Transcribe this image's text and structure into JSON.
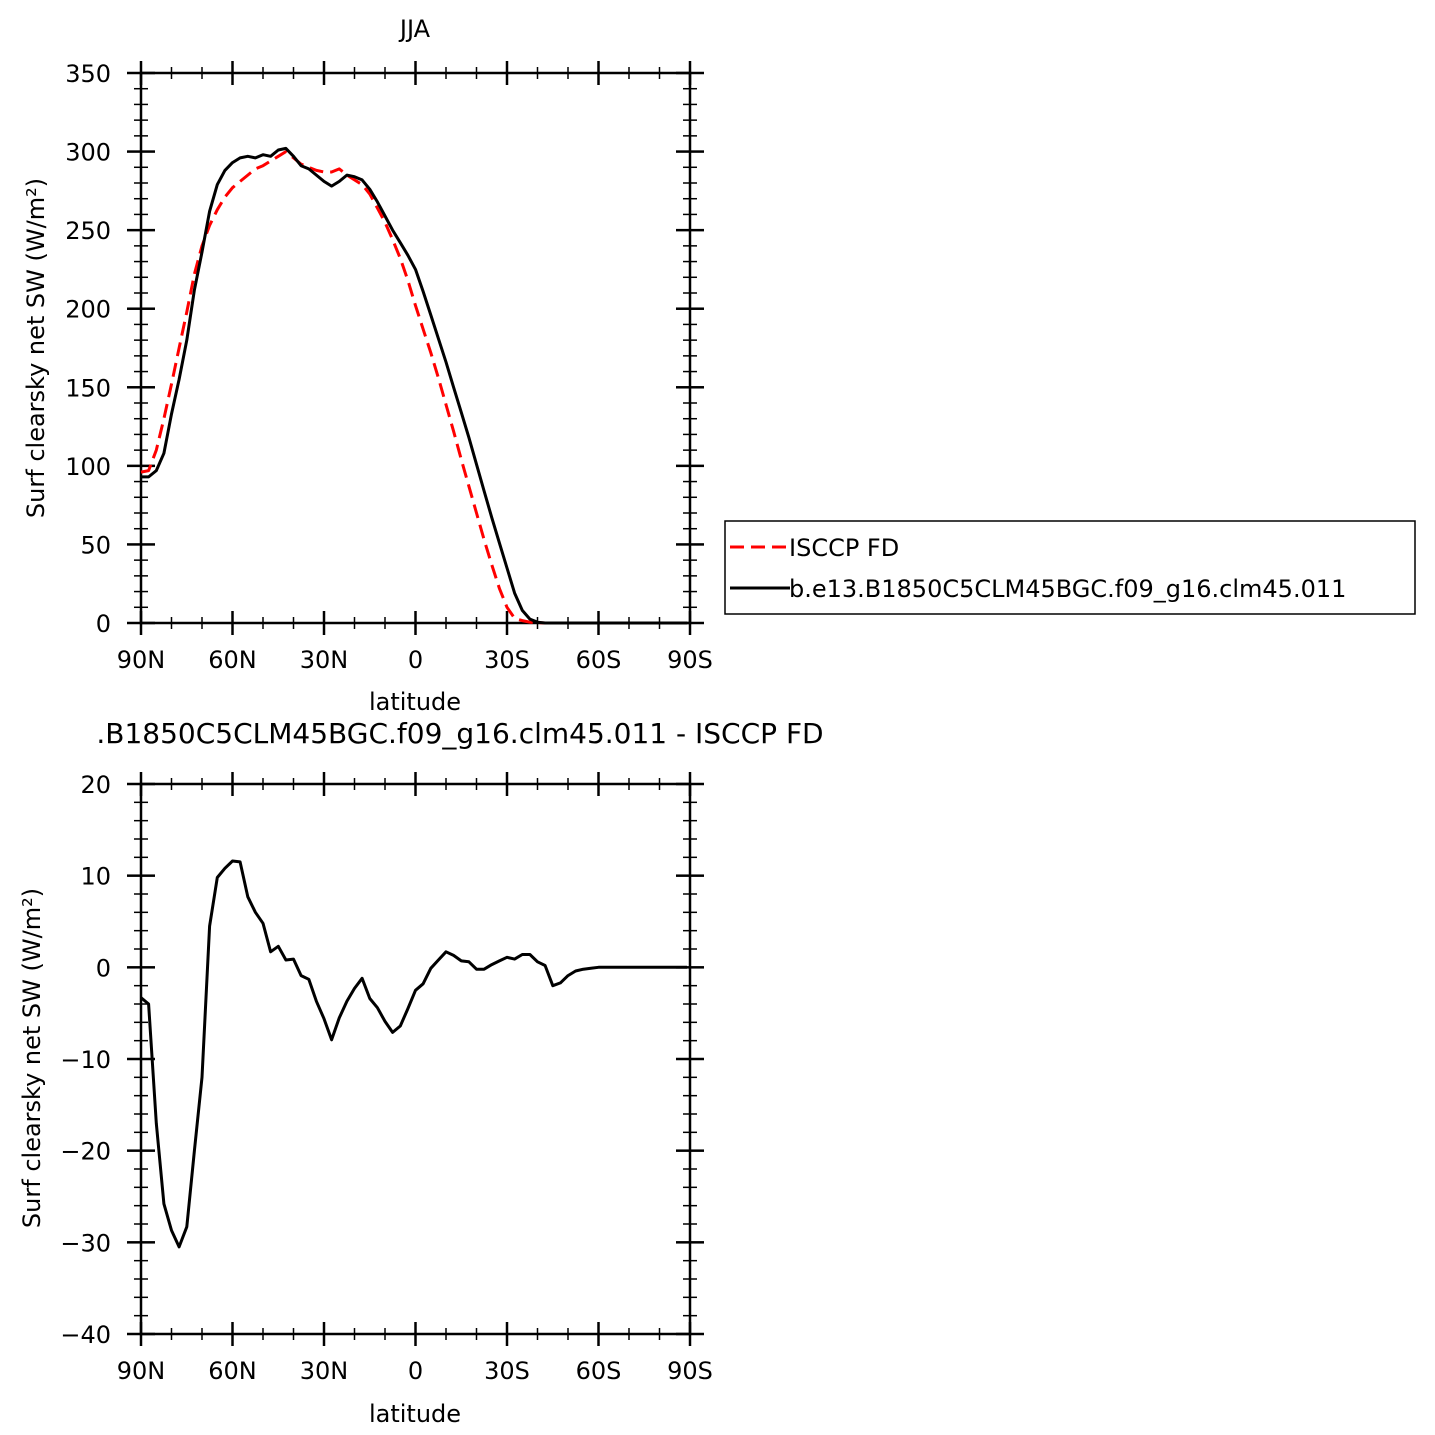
{
  "colors": {
    "obs": "#ff0000",
    "model": "#000000",
    "axis": "#000000"
  },
  "chart_data": [
    {
      "type": "line",
      "title": "JJA",
      "xlabel": "latitude",
      "ylabel": "Surf clearsky net SW (W/m²)",
      "xlim": [
        90,
        -90
      ],
      "ylim": [
        0,
        350
      ],
      "xticks": [
        90,
        60,
        30,
        0,
        -30,
        -60,
        -90
      ],
      "xtick_labels": [
        "90N",
        "60N",
        "30N",
        "0",
        "30S",
        "60S",
        "90S"
      ],
      "yticks": [
        0,
        50,
        100,
        150,
        200,
        250,
        300,
        350
      ],
      "ytick_labels": [
        "0",
        "50",
        "100",
        "150",
        "200",
        "250",
        "300",
        "350"
      ],
      "legend": {
        "placement": "right",
        "entries": [
          "ISCCP FD",
          "b.e13.B1850C5CLM45BGC.f09_g16.clm45.011"
        ]
      },
      "series": [
        {
          "name": "ISCCP FD",
          "style": "dashed",
          "color": "#ff0000",
          "x": [
            90,
            87.5,
            85,
            82.5,
            80,
            77.5,
            75,
            72.5,
            70,
            67.5,
            65,
            62.5,
            60,
            57.5,
            55,
            52.5,
            50,
            47.5,
            45,
            42.5,
            40,
            37.5,
            35,
            32.5,
            30,
            27.5,
            25,
            22.5,
            20,
            17.5,
            15,
            12.5,
            10,
            7.5,
            5,
            2.5,
            0,
            -2.5,
            -5,
            -7.5,
            -10,
            -12.5,
            -15,
            -17.5,
            -20,
            -22.5,
            -25,
            -27.5,
            -30,
            -32.5,
            -35,
            -37.5,
            -40,
            -42.5,
            -45,
            -47.5,
            -50,
            -52.5,
            -55,
            -57.5,
            -60,
            -62.5,
            -65,
            -67.5,
            -70,
            -72.5,
            -75,
            -77.5,
            -80,
            -82.5,
            -85,
            -87.5,
            -89
          ],
          "values": [
            96,
            97,
            110,
            130,
            152,
            175,
            198,
            222,
            240,
            253,
            263,
            271,
            277,
            281,
            285,
            289,
            291,
            294,
            297,
            300,
            296,
            292,
            290,
            288,
            287,
            287,
            289,
            285,
            282,
            279,
            273,
            264,
            255,
            244,
            232,
            218,
            202,
            187,
            172,
            156,
            139,
            122,
            104,
            87,
            70,
            53,
            37,
            22,
            10,
            3,
            1.5,
            0.5,
            0.2,
            0,
            0,
            0,
            0,
            0,
            0,
            0,
            0,
            0,
            0,
            0,
            0,
            0,
            0,
            0,
            0,
            0,
            0,
            0,
            0
          ]
        },
        {
          "name": "b.e13.B1850C5CLM45BGC.f09_g16.clm45.011",
          "style": "solid",
          "color": "#000000",
          "x": [
            90,
            87.5,
            85,
            82.5,
            80,
            77.5,
            75,
            72.5,
            70,
            67.5,
            65,
            62.5,
            60,
            57.5,
            55,
            52.5,
            50,
            47.5,
            45,
            42.5,
            40,
            37.5,
            35,
            32.5,
            30,
            27.5,
            25,
            22.5,
            20,
            17.5,
            15,
            12.5,
            10,
            7.5,
            5,
            2.5,
            0,
            -2.5,
            -5,
            -7.5,
            -10,
            -12.5,
            -15,
            -17.5,
            -20,
            -22.5,
            -25,
            -27.5,
            -30,
            -32.5,
            -35,
            -37.5,
            -40,
            -42.5,
            -45,
            -47.5,
            -50,
            -52.5,
            -55,
            -57.5,
            -60,
            -62.5,
            -65,
            -67.5,
            -70,
            -72.5,
            -75,
            -77.5,
            -80,
            -82.5,
            -85,
            -87.5,
            -89
          ],
          "values": [
            93,
            93,
            97,
            108,
            133,
            155,
            180,
            212,
            236,
            262,
            279,
            288,
            293,
            296,
            297,
            296,
            298,
            297,
            301,
            302,
            297,
            291,
            289,
            285,
            281,
            278,
            281,
            285,
            284,
            282,
            276,
            268,
            259,
            250,
            242,
            234,
            225,
            211,
            196,
            181,
            166,
            150,
            134,
            118,
            101,
            84,
            67,
            51,
            35,
            19,
            8,
            2.5,
            0.5,
            0,
            0,
            0,
            0,
            0,
            0,
            0,
            0,
            0,
            0,
            0,
            0,
            0,
            0,
            0,
            0,
            0,
            0,
            0,
            0
          ]
        }
      ]
    },
    {
      "type": "line",
      "title": ".B1850C5CLM45BGC.f09_g16.clm45.011 - ISCCP FD",
      "xlabel": "latitude",
      "ylabel": "Surf clearsky net SW (W/m²)",
      "xlim": [
        90,
        -90
      ],
      "ylim": [
        -40,
        20
      ],
      "xticks": [
        90,
        60,
        30,
        0,
        -30,
        -60,
        -90
      ],
      "xtick_labels": [
        "90N",
        "60N",
        "30N",
        "0",
        "30S",
        "60S",
        "90S"
      ],
      "yticks": [
        -40,
        -30,
        -20,
        -10,
        0,
        10,
        20
      ],
      "ytick_labels": [
        "−40",
        "−30",
        "−20",
        "−10",
        "0",
        "10",
        "20"
      ],
      "series": [
        {
          "style": "solid",
          "color": "#000000",
          "x": [
            90,
            87.5,
            85,
            82.5,
            80,
            77.5,
            75,
            72.5,
            70,
            67.5,
            65,
            62.5,
            60,
            57.5,
            55,
            52.5,
            50,
            47.5,
            45,
            42.5,
            40,
            37.5,
            35,
            32.5,
            30,
            27.5,
            25,
            22.5,
            20,
            17.5,
            15,
            12.5,
            10,
            7.5,
            5,
            2.5,
            0,
            -2.5,
            -5,
            -7.5,
            -10,
            -12.5,
            -15,
            -17.5,
            -20,
            -22.5,
            -25,
            -27.5,
            -30,
            -32.5,
            -35,
            -37.5,
            -40,
            -42.5,
            -45,
            -47.5,
            -50,
            -52.5,
            -55,
            -57.5,
            -60,
            -62.5,
            -65,
            -67.5,
            -70,
            -72.5,
            -75,
            -77.5,
            -80,
            -82.5,
            -85,
            -87.5,
            -89
          ],
          "values": [
            -3.3,
            -4,
            -17,
            -25.8,
            -28.7,
            -30.5,
            -28.3,
            -20,
            -12,
            4.5,
            9.8,
            10.8,
            11.6,
            11.5,
            7.7,
            6,
            4.8,
            1.7,
            2.3,
            0.8,
            0.9,
            -0.9,
            -1.3,
            -3.7,
            -5.6,
            -7.9,
            -5.5,
            -3.7,
            -2.3,
            -1.2,
            -3.4,
            -4.4,
            -5.9,
            -7.1,
            -6.4,
            -4.5,
            -2.5,
            -1.8,
            -0.1,
            0.8,
            1.7,
            1.3,
            0.7,
            0.6,
            -0.2,
            -0.2,
            0.3,
            0.7,
            1.1,
            0.9,
            1.4,
            1.4,
            0.6,
            0.2,
            -2,
            -1.7,
            -0.9,
            -0.4,
            -0.2,
            -0.1,
            0,
            0,
            0,
            0,
            0,
            0,
            0,
            0,
            0,
            0,
            0,
            0,
            0
          ]
        }
      ]
    }
  ]
}
